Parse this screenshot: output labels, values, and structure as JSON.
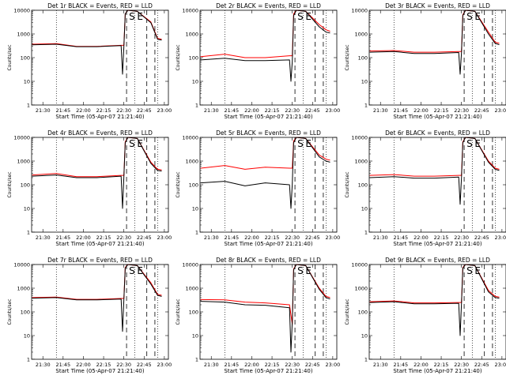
{
  "panel_titles": [
    "Det 1r BLACK = Events, RED = LLD",
    "Det 2r BLACK = Events, RED = LLD",
    "Det 3r BLACK = Events, RED = LLD",
    "Det 4r BLACK = Events, RED = LLD",
    "Det 5r BLACK = Events, RED = LLD",
    "Det 6r BLACK = Events, RED = LLD",
    "Det 7r BLACK = Events, RED = LLD",
    "Det 8r BLACK = Events, RED = LLD",
    "Det 9r BLACK = Events, RED = LLD"
  ],
  "xlabel": "Start Time (05-Apr-07 21:21:40)",
  "ylabel": "Counts/sec",
  "x_tick_labels": [
    "21:30",
    "21:45",
    "22:00",
    "22:15",
    "22:30",
    "22:45",
    "23:00"
  ],
  "y_tick_labels": [
    "1",
    "10",
    "100",
    "1000",
    "10000"
  ],
  "marker_labels": [
    "S",
    "E"
  ],
  "colors": {
    "events": "#000000",
    "lld": "#ff0000",
    "axes": "#000000"
  },
  "chart_data": [
    {
      "type": "line",
      "title": "Det 1r BLACK = Events, RED = LLD",
      "ylog": true,
      "ylim": [
        1,
        10000
      ],
      "xlim": [
        "21:21:40",
        "23:03:00"
      ],
      "series": [
        {
          "name": "Events",
          "x": [
            "21:22",
            "21:40",
            "21:55",
            "22:10",
            "22:28",
            "22:29",
            "22:30",
            "22:31",
            "22:33",
            "22:40",
            "22:50",
            "22:55",
            "22:58"
          ],
          "y": [
            350,
            370,
            290,
            290,
            320,
            20,
            300,
            7000,
            10000,
            9000,
            3000,
            600,
            550
          ]
        },
        {
          "name": "LLD",
          "x": [
            "21:22",
            "21:40",
            "21:55",
            "22:10",
            "22:28",
            "22:30",
            "22:31",
            "22:33",
            "22:40",
            "22:50",
            "22:55",
            "22:58"
          ],
          "y": [
            370,
            390,
            300,
            300,
            330,
            330,
            7000,
            10000,
            9000,
            3200,
            650,
            600
          ]
        }
      ],
      "dotted_lines_x": [
        "21:40",
        "22:38",
        "22:55"
      ],
      "dashed_lines_x": [
        "22:32",
        "22:47",
        "22:53"
      ]
    },
    {
      "type": "line",
      "title": "Det 2r BLACK = Events, RED = LLD",
      "ylog": true,
      "ylim": [
        1,
        10000
      ],
      "xlim": [
        "21:21:40",
        "23:03:00"
      ],
      "series": [
        {
          "name": "Events",
          "x": [
            "21:22",
            "21:40",
            "21:55",
            "22:10",
            "22:28",
            "22:29",
            "22:30",
            "22:31",
            "22:33",
            "22:40",
            "22:50",
            "22:55",
            "22:58"
          ],
          "y": [
            80,
            95,
            75,
            75,
            80,
            10,
            70,
            6000,
            10000,
            9000,
            2000,
            1200,
            1100
          ]
        },
        {
          "name": "LLD",
          "x": [
            "21:22",
            "21:40",
            "21:55",
            "22:10",
            "22:28",
            "22:30",
            "22:31",
            "22:33",
            "22:40",
            "22:50",
            "22:55",
            "22:58"
          ],
          "y": [
            110,
            140,
            100,
            100,
            120,
            120,
            7000,
            10000,
            9000,
            2500,
            1500,
            1300
          ]
        }
      ],
      "dotted_lines_x": [
        "21:40",
        "22:38",
        "22:55"
      ],
      "dashed_lines_x": [
        "22:32",
        "22:47",
        "22:53"
      ]
    },
    {
      "type": "line",
      "title": "Det 3r BLACK = Events, RED = LLD",
      "ylog": true,
      "ylim": [
        1,
        10000
      ],
      "xlim": [
        "21:21:40",
        "23:03:00"
      ],
      "series": [
        {
          "name": "Events",
          "x": [
            "21:22",
            "21:40",
            "21:55",
            "22:10",
            "22:28",
            "22:29",
            "22:30",
            "22:31",
            "22:33",
            "22:40",
            "22:50",
            "22:55",
            "22:58"
          ],
          "y": [
            170,
            180,
            150,
            150,
            165,
            20,
            160,
            6000,
            10000,
            9000,
            1000,
            400,
            350
          ]
        },
        {
          "name": "LLD",
          "x": [
            "21:22",
            "21:40",
            "21:55",
            "22:10",
            "22:28",
            "22:30",
            "22:31",
            "22:33",
            "22:40",
            "22:50",
            "22:55",
            "22:58"
          ],
          "y": [
            190,
            200,
            170,
            170,
            180,
            180,
            6500,
            10000,
            9000,
            1200,
            450,
            400
          ]
        }
      ],
      "dotted_lines_x": [
        "21:40",
        "22:38",
        "22:55"
      ],
      "dashed_lines_x": [
        "22:32",
        "22:47",
        "22:53"
      ]
    },
    {
      "type": "line",
      "title": "Det 4r BLACK = Events, RED = LLD",
      "ylog": true,
      "ylim": [
        1,
        10000
      ],
      "xlim": [
        "21:21:40",
        "23:03:00"
      ],
      "series": [
        {
          "name": "Events",
          "x": [
            "21:22",
            "21:40",
            "21:55",
            "22:10",
            "22:28",
            "22:29",
            "22:30",
            "22:31",
            "22:33",
            "22:40",
            "22:50",
            "22:55",
            "22:58"
          ],
          "y": [
            230,
            260,
            200,
            200,
            230,
            10,
            220,
            6000,
            10000,
            9000,
            800,
            400,
            380
          ]
        },
        {
          "name": "LLD",
          "x": [
            "21:22",
            "21:40",
            "21:55",
            "22:10",
            "22:28",
            "22:30",
            "22:31",
            "22:33",
            "22:40",
            "22:50",
            "22:55",
            "22:58"
          ],
          "y": [
            260,
            300,
            220,
            220,
            250,
            250,
            6500,
            10000,
            9000,
            900,
            450,
            420
          ]
        }
      ],
      "dotted_lines_x": [
        "21:40",
        "22:38",
        "22:55"
      ],
      "dashed_lines_x": [
        "22:32",
        "22:47",
        "22:53"
      ]
    },
    {
      "type": "line",
      "title": "Det 5r BLACK = Events, RED = LLD",
      "ylog": true,
      "ylim": [
        1,
        10000
      ],
      "xlim": [
        "21:21:40",
        "23:03:00"
      ],
      "series": [
        {
          "name": "Events",
          "x": [
            "21:22",
            "21:40",
            "21:55",
            "22:10",
            "22:28",
            "22:29",
            "22:30",
            "22:31",
            "22:33",
            "22:40",
            "22:50",
            "22:55",
            "22:58"
          ],
          "y": [
            120,
            140,
            90,
            120,
            100,
            10,
            110,
            6000,
            10000,
            9000,
            1500,
            1000,
            900
          ]
        },
        {
          "name": "LLD",
          "x": [
            "21:22",
            "21:40",
            "21:55",
            "22:10",
            "22:28",
            "22:30",
            "22:31",
            "22:33",
            "22:40",
            "22:50",
            "22:55",
            "22:58"
          ],
          "y": [
            500,
            650,
            450,
            550,
            500,
            500,
            7000,
            10000,
            9000,
            1800,
            1200,
            1100
          ]
        }
      ],
      "dotted_lines_x": [
        "21:40",
        "22:38",
        "22:55"
      ],
      "dashed_lines_x": [
        "22:32",
        "22:47",
        "22:53"
      ]
    },
    {
      "type": "line",
      "title": "Det 6r BLACK = Events, RED = LLD",
      "ylog": true,
      "ylim": [
        1,
        10000
      ],
      "xlim": [
        "21:21:40",
        "23:03:00"
      ],
      "series": [
        {
          "name": "Events",
          "x": [
            "21:22",
            "21:40",
            "21:55",
            "22:10",
            "22:28",
            "22:29",
            "22:30",
            "22:31",
            "22:33",
            "22:40",
            "22:50",
            "22:55",
            "22:58"
          ],
          "y": [
            200,
            220,
            190,
            190,
            210,
            15,
            200,
            6000,
            10000,
            9000,
            900,
            450,
            400
          ]
        },
        {
          "name": "LLD",
          "x": [
            "21:22",
            "21:40",
            "21:55",
            "22:10",
            "22:28",
            "22:30",
            "22:31",
            "22:33",
            "22:40",
            "22:50",
            "22:55",
            "22:58"
          ],
          "y": [
            250,
            270,
            230,
            230,
            250,
            250,
            6500,
            10000,
            9000,
            1000,
            500,
            450
          ]
        }
      ],
      "dotted_lines_x": [
        "21:40",
        "22:38",
        "22:55"
      ],
      "dashed_lines_x": [
        "22:32",
        "22:47",
        "22:53"
      ]
    },
    {
      "type": "line",
      "title": "Det 7r BLACK = Events, RED = LLD",
      "ylog": true,
      "ylim": [
        1,
        10000
      ],
      "xlim": [
        "21:21:40",
        "23:03:00"
      ],
      "series": [
        {
          "name": "Events",
          "x": [
            "21:22",
            "21:40",
            "21:55",
            "22:10",
            "22:28",
            "22:29",
            "22:30",
            "22:31",
            "22:33",
            "22:40",
            "22:50",
            "22:55",
            "22:58"
          ],
          "y": [
            380,
            400,
            320,
            320,
            350,
            15,
            340,
            7000,
            10000,
            9000,
            1500,
            500,
            450
          ]
        },
        {
          "name": "LLD",
          "x": [
            "21:22",
            "21:40",
            "21:55",
            "22:10",
            "22:28",
            "22:30",
            "22:31",
            "22:33",
            "22:40",
            "22:50",
            "22:55",
            "22:58"
          ],
          "y": [
            400,
            420,
            340,
            340,
            370,
            370,
            7500,
            10000,
            9000,
            1700,
            550,
            500
          ]
        }
      ],
      "dotted_lines_x": [
        "21:40",
        "22:38",
        "22:55"
      ],
      "dashed_lines_x": [
        "22:32",
        "22:47",
        "22:53"
      ]
    },
    {
      "type": "line",
      "title": "Det 8r BLACK = Events, RED = LLD",
      "ylog": true,
      "ylim": [
        1,
        10000
      ],
      "xlim": [
        "21:21:40",
        "23:03:00"
      ],
      "series": [
        {
          "name": "Events",
          "x": [
            "21:22",
            "21:40",
            "21:55",
            "22:10",
            "22:28",
            "22:29",
            "22:30",
            "22:31",
            "22:33",
            "22:40",
            "22:50",
            "22:55",
            "22:58"
          ],
          "y": [
            280,
            260,
            200,
            190,
            150,
            2,
            40,
            6000,
            10000,
            9000,
            900,
            400,
            350
          ]
        },
        {
          "name": "LLD",
          "x": [
            "21:22",
            "21:40",
            "21:55",
            "22:10",
            "22:28",
            "22:30",
            "22:31",
            "22:33",
            "22:40",
            "22:50",
            "22:55",
            "22:58"
          ],
          "y": [
            330,
            320,
            260,
            240,
            200,
            30,
            6500,
            10000,
            9000,
            1000,
            450,
            400
          ]
        }
      ],
      "dotted_lines_x": [
        "21:40",
        "22:38",
        "22:55"
      ],
      "dashed_lines_x": [
        "22:32",
        "22:47",
        "22:53"
      ]
    },
    {
      "type": "line",
      "title": "Det 9r BLACK = Events, RED = LLD",
      "ylog": true,
      "ylim": [
        1,
        10000
      ],
      "xlim": [
        "21:21:40",
        "23:03:00"
      ],
      "series": [
        {
          "name": "Events",
          "x": [
            "21:22",
            "21:40",
            "21:55",
            "22:10",
            "22:28",
            "22:29",
            "22:30",
            "22:31",
            "22:33",
            "22:40",
            "22:50",
            "22:55",
            "22:58"
          ],
          "y": [
            250,
            270,
            220,
            220,
            230,
            10,
            230,
            7000,
            10000,
            9000,
            700,
            400,
            380
          ]
        },
        {
          "name": "LLD",
          "x": [
            "21:22",
            "21:40",
            "21:55",
            "22:10",
            "22:28",
            "22:30",
            "22:31",
            "22:33",
            "22:40",
            "22:50",
            "22:55",
            "22:58"
          ],
          "y": [
            270,
            290,
            240,
            240,
            250,
            250,
            7500,
            10000,
            9000,
            800,
            450,
            420
          ]
        }
      ],
      "dotted_lines_x": [
        "21:40",
        "22:38",
        "22:55"
      ],
      "dashed_lines_x": [
        "22:32",
        "22:47",
        "22:53"
      ]
    }
  ]
}
